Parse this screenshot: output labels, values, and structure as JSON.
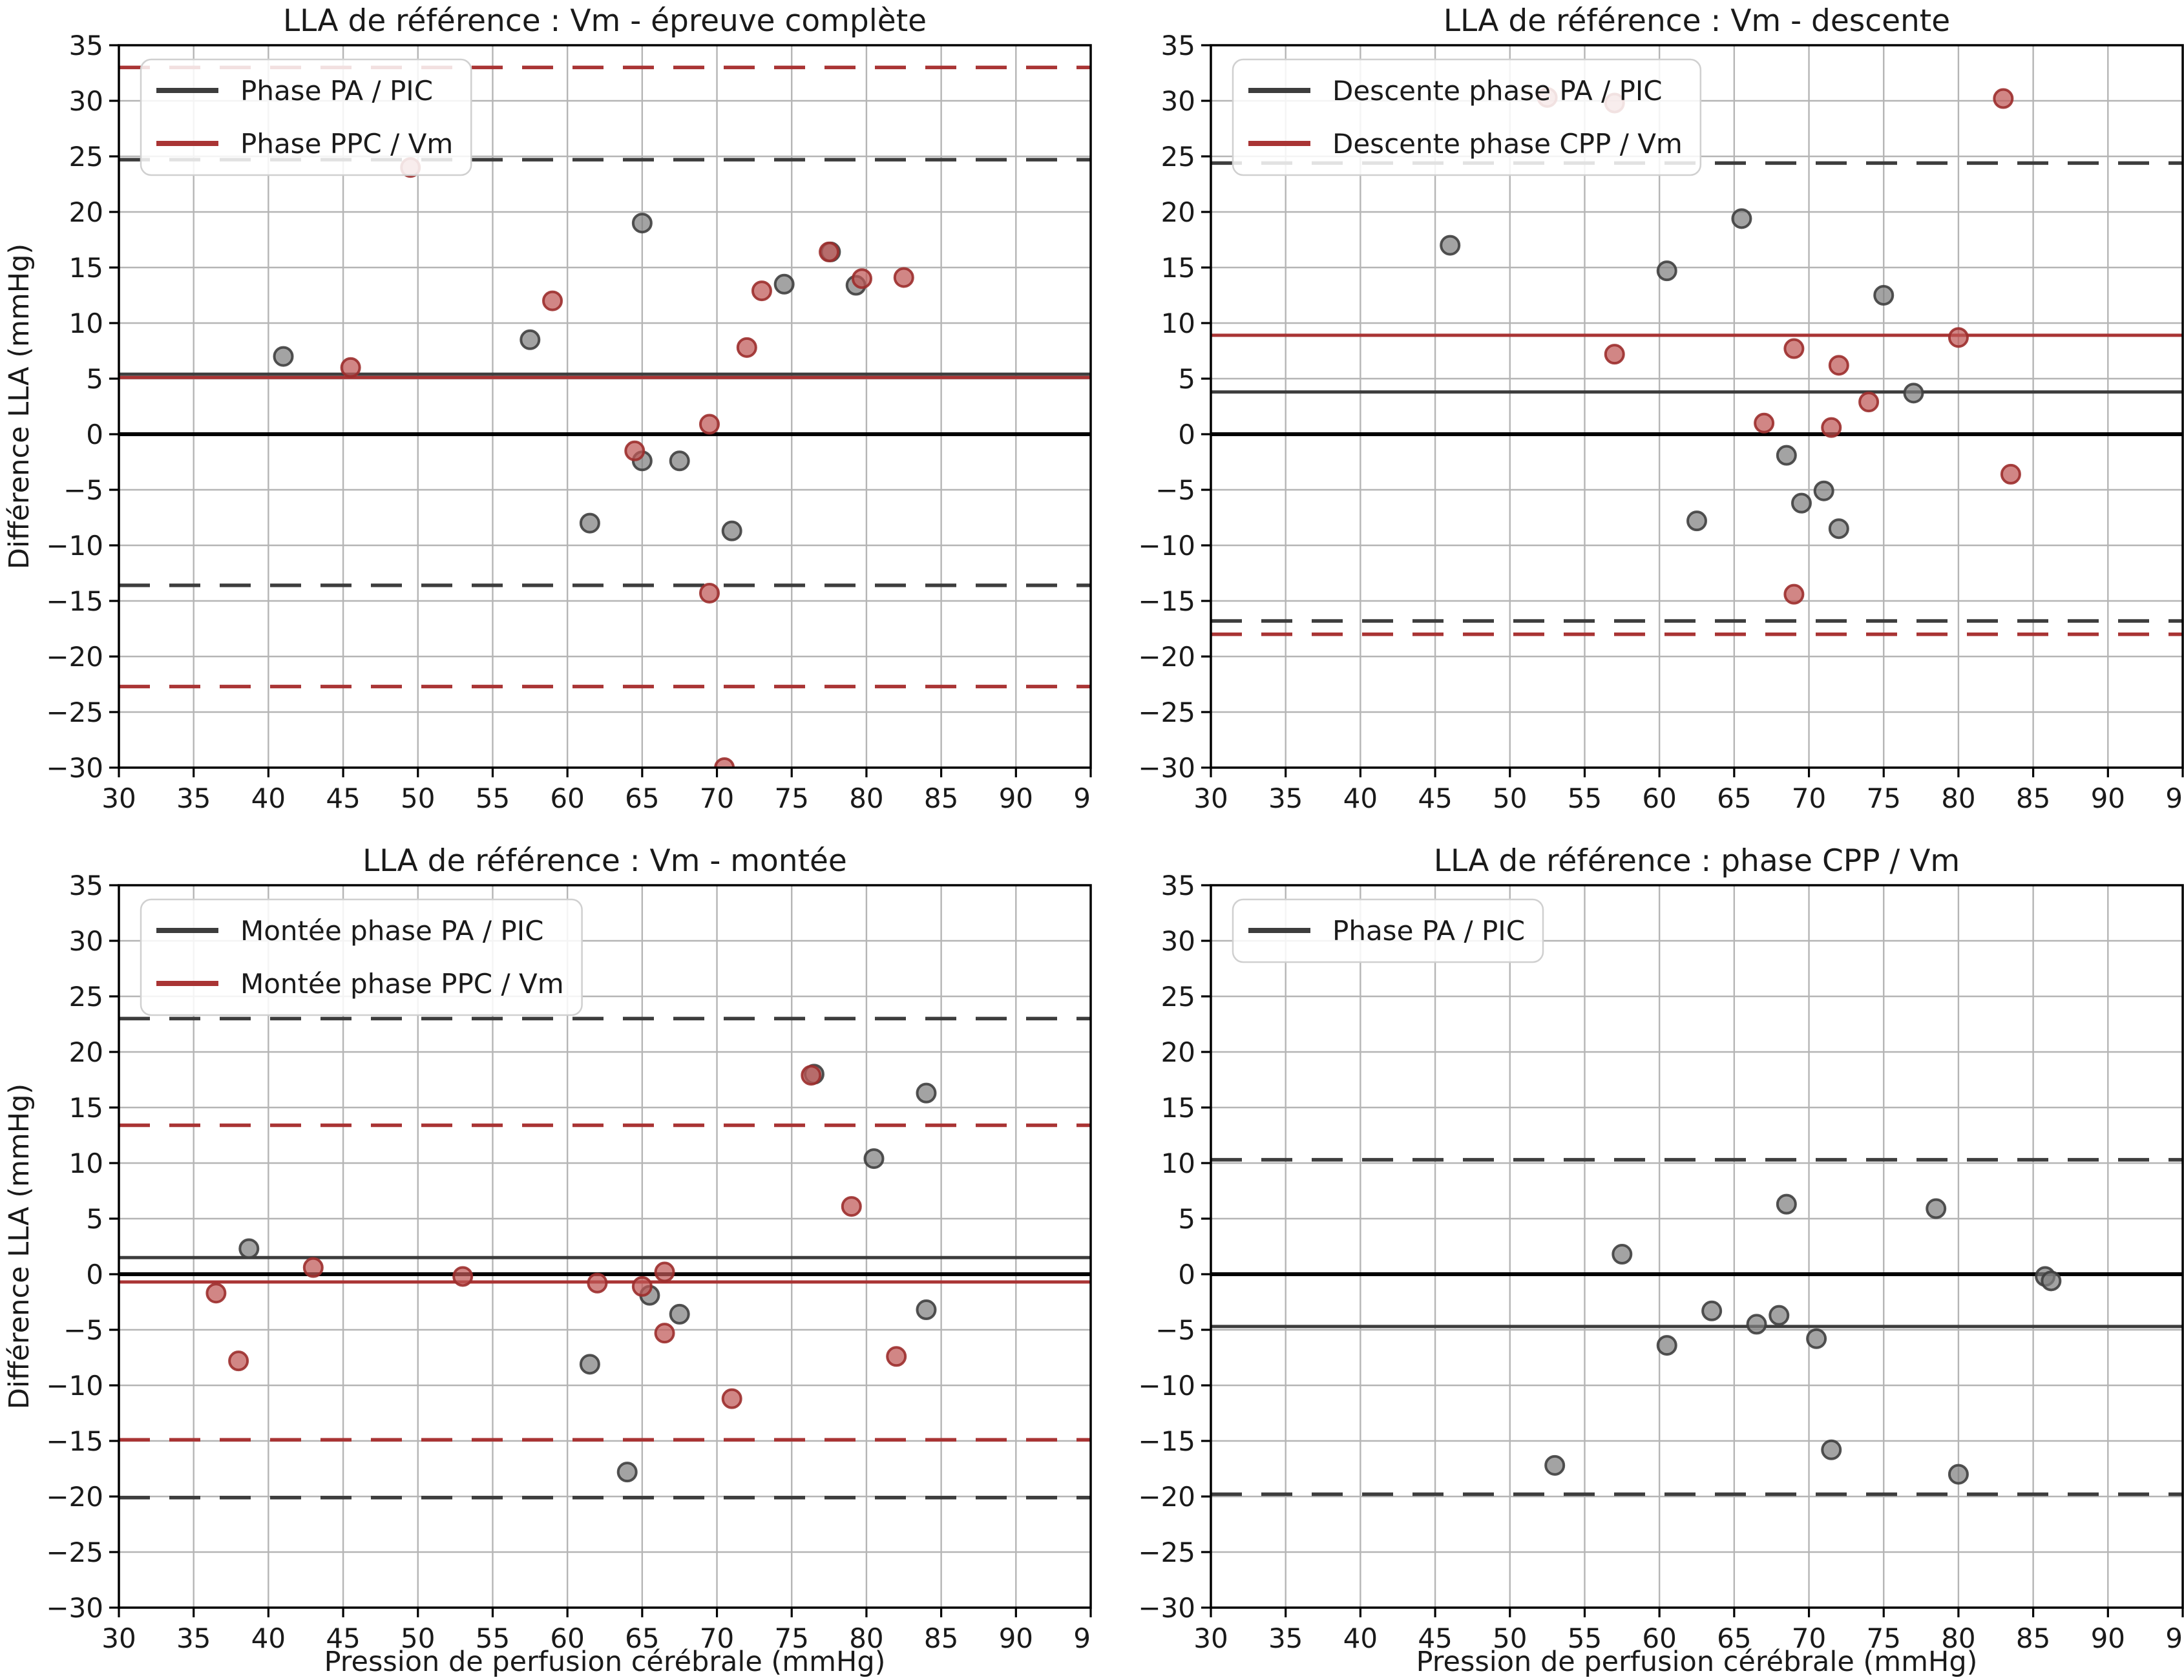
{
  "page": {
    "background": "#ffffff"
  },
  "colors": {
    "black": "#000000",
    "gray_line": "#3d3d3d",
    "red_line": "#a93434",
    "gray_fill": "#7f7f7f",
    "gray_edge": "#3f3f3f",
    "red_fill": "#bf5856",
    "red_edge": "#9c2e2c",
    "grid": "#b5b5b5",
    "spine": "#000000",
    "legend_border": "#d0d0d0"
  },
  "axis": {
    "xlim": [
      30,
      95
    ],
    "ylim": [
      -30,
      35
    ],
    "xtick_step": 5,
    "ytick_step": 5,
    "xlabel": "Pression de perfusion cérébrale (mmHg)",
    "ylabel": "Différence LLA (mmHg)"
  },
  "chart_data": [
    {
      "type": "scatter",
      "title": "LLA de référence : Vm - épreuve complète",
      "show_xlabel": false,
      "show_ylabel": true,
      "legend": [
        {
          "label": "Phase PA / PIC",
          "color": "gray_line"
        },
        {
          "label": "Phase PPC / Vm",
          "color": "red_line"
        }
      ],
      "hlines": [
        {
          "y": 0,
          "color": "black",
          "style": "solid",
          "width": 6
        },
        {
          "y": 5.4,
          "color": "gray_line",
          "style": "solid",
          "width": 5
        },
        {
          "y": 5.1,
          "color": "red_line",
          "style": "solid",
          "width": 5
        },
        {
          "y": 24.7,
          "color": "gray_line",
          "style": "dashed",
          "width": 5.5
        },
        {
          "y": -13.6,
          "color": "gray_line",
          "style": "dashed",
          "width": 5.5
        },
        {
          "y": 33.0,
          "color": "red_line",
          "style": "dashed",
          "width": 5.5
        },
        {
          "y": -22.7,
          "color": "red_line",
          "style": "dashed",
          "width": 5.5
        }
      ],
      "series": [
        {
          "name": "Phase PA / PIC",
          "fill": "gray_fill",
          "edge": "gray_edge",
          "points": [
            [
              41,
              7
            ],
            [
              57.5,
              8.5
            ],
            [
              65,
              19
            ],
            [
              74.5,
              13.5
            ],
            [
              77.6,
              16.4
            ],
            [
              79.3,
              13.4
            ],
            [
              65,
              -2.4
            ],
            [
              67.5,
              -2.4
            ],
            [
              61.5,
              -8
            ],
            [
              71,
              -8.7
            ]
          ]
        },
        {
          "name": "Phase PPC / Vm",
          "fill": "red_fill",
          "edge": "red_edge",
          "points": [
            [
              45.5,
              6
            ],
            [
              49.5,
              24
            ],
            [
              59,
              12
            ],
            [
              69.5,
              0.9
            ],
            [
              64.5,
              -1.5
            ],
            [
              72,
              7.8
            ],
            [
              73,
              12.9
            ],
            [
              77.5,
              16.4
            ],
            [
              79.7,
              14
            ],
            [
              82.5,
              14.1
            ],
            [
              69.5,
              -14.3
            ],
            [
              70.5,
              -30
            ]
          ]
        }
      ]
    },
    {
      "type": "scatter",
      "title": "LLA de référence : Vm - descente",
      "show_xlabel": false,
      "show_ylabel": false,
      "legend": [
        {
          "label": "Descente phase PA / PIC",
          "color": "gray_line"
        },
        {
          "label": "Descente phase CPP / Vm",
          "color": "red_line"
        }
      ],
      "hlines": [
        {
          "y": 0,
          "color": "black",
          "style": "solid",
          "width": 6
        },
        {
          "y": 3.8,
          "color": "gray_line",
          "style": "solid",
          "width": 5
        },
        {
          "y": 8.9,
          "color": "red_line",
          "style": "solid",
          "width": 5
        },
        {
          "y": 24.4,
          "color": "gray_line",
          "style": "dashed",
          "width": 5.5
        },
        {
          "y": -16.8,
          "color": "gray_line",
          "style": "dashed",
          "width": 5.5
        },
        {
          "y": -18.0,
          "color": "red_line",
          "style": "dashed",
          "width": 5.5
        }
      ],
      "series": [
        {
          "name": "Descente phase PA / PIC",
          "fill": "gray_fill",
          "edge": "gray_edge",
          "points": [
            [
              46,
              17
            ],
            [
              60.5,
              14.7
            ],
            [
              65.5,
              19.4
            ],
            [
              75,
              12.5
            ],
            [
              77,
              3.7
            ],
            [
              68.5,
              -1.9
            ],
            [
              69.5,
              -6.2
            ],
            [
              71,
              -5.1
            ],
            [
              62.5,
              -7.8
            ],
            [
              72,
              -8.5
            ]
          ]
        },
        {
          "name": "Descente phase CPP / Vm",
          "fill": "red_fill",
          "edge": "red_edge",
          "points": [
            [
              52.5,
              30.3
            ],
            [
              57,
              29.8
            ],
            [
              83,
              30.2
            ],
            [
              57,
              7.2
            ],
            [
              69,
              7.7
            ],
            [
              72,
              6.2
            ],
            [
              74,
              2.9
            ],
            [
              67,
              1.0
            ],
            [
              71.5,
              0.6
            ],
            [
              80,
              8.7
            ],
            [
              83.5,
              -3.6
            ],
            [
              69,
              -14.4
            ]
          ]
        }
      ]
    },
    {
      "type": "scatter",
      "title": "LLA de référence : Vm - montée",
      "show_xlabel": true,
      "show_ylabel": true,
      "legend": [
        {
          "label": "Montée phase PA / PIC",
          "color": "gray_line"
        },
        {
          "label": "Montée phase PPC / Vm",
          "color": "red_line"
        }
      ],
      "hlines": [
        {
          "y": 0,
          "color": "black",
          "style": "solid",
          "width": 6
        },
        {
          "y": 1.5,
          "color": "gray_line",
          "style": "solid",
          "width": 5
        },
        {
          "y": -0.7,
          "color": "red_line",
          "style": "solid",
          "width": 5
        },
        {
          "y": 23.0,
          "color": "gray_line",
          "style": "dashed",
          "width": 5.5
        },
        {
          "y": -20.1,
          "color": "gray_line",
          "style": "dashed",
          "width": 5.5
        },
        {
          "y": 13.4,
          "color": "red_line",
          "style": "dashed",
          "width": 5.5
        },
        {
          "y": -14.9,
          "color": "red_line",
          "style": "dashed",
          "width": 5.5
        }
      ],
      "series": [
        {
          "name": "Montée phase PA / PIC",
          "fill": "gray_fill",
          "edge": "gray_edge",
          "points": [
            [
              38.7,
              2.3
            ],
            [
              61.5,
              -8.1
            ],
            [
              64,
              -17.8
            ],
            [
              65.5,
              -1.9
            ],
            [
              67.5,
              -3.6
            ],
            [
              76.5,
              18
            ],
            [
              80.5,
              10.4
            ],
            [
              84,
              16.3
            ],
            [
              84,
              -3.2
            ]
          ]
        },
        {
          "name": "Montée phase PPC / Vm",
          "fill": "red_fill",
          "edge": "red_edge",
          "points": [
            [
              36.5,
              -1.7
            ],
            [
              38,
              -7.8
            ],
            [
              43,
              0.6
            ],
            [
              53,
              -0.2
            ],
            [
              62,
              -0.8
            ],
            [
              65,
              -1.1
            ],
            [
              66.5,
              0.2
            ],
            [
              66.5,
              -5.3
            ],
            [
              71,
              -11.2
            ],
            [
              76.3,
              17.9
            ],
            [
              79,
              6.1
            ],
            [
              82,
              -7.4
            ]
          ]
        }
      ]
    },
    {
      "type": "scatter",
      "title": "LLA de référence : phase CPP / Vm",
      "show_xlabel": true,
      "show_ylabel": false,
      "legend": [
        {
          "label": "Phase PA / PIC",
          "color": "gray_line"
        }
      ],
      "hlines": [
        {
          "y": 0,
          "color": "black",
          "style": "solid",
          "width": 6
        },
        {
          "y": -4.7,
          "color": "gray_line",
          "style": "solid",
          "width": 5
        },
        {
          "y": 10.3,
          "color": "gray_line",
          "style": "dashed",
          "width": 5.5
        },
        {
          "y": -19.8,
          "color": "gray_line",
          "style": "dashed",
          "width": 5.5
        }
      ],
      "series": [
        {
          "name": "Phase PA / PIC",
          "fill": "gray_fill",
          "edge": "gray_edge",
          "points": [
            [
              53,
              -17.2
            ],
            [
              57.5,
              1.8
            ],
            [
              60.5,
              -6.4
            ],
            [
              63.5,
              -3.3
            ],
            [
              66.5,
              -4.5
            ],
            [
              68,
              -3.7
            ],
            [
              68.5,
              6.3
            ],
            [
              70.5,
              -5.8
            ],
            [
              71.5,
              -15.8
            ],
            [
              78.5,
              5.9
            ],
            [
              80,
              -18
            ],
            [
              85.8,
              -0.2
            ],
            [
              86.2,
              -0.6
            ]
          ]
        }
      ]
    }
  ]
}
